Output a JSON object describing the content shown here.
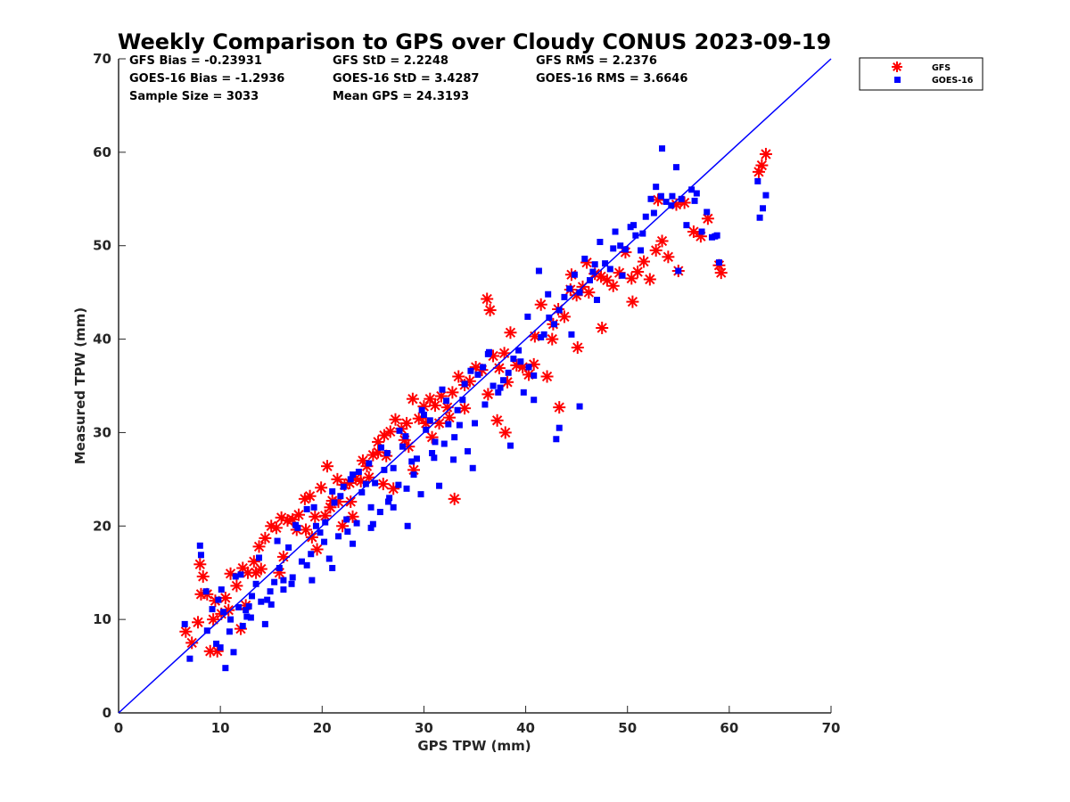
{
  "chart_data": {
    "type": "scatter",
    "title": "Weekly Comparison to GPS over Cloudy CONUS 2023-09-19",
    "xlabel": "GPS TPW (mm)",
    "ylabel": "Measured TPW (mm)",
    "xlim": [
      0,
      70
    ],
    "ylim": [
      0,
      70
    ],
    "xticks": [
      "0",
      "10",
      "20",
      "30",
      "40",
      "50",
      "60",
      "70"
    ],
    "yticks": [
      "0",
      "10",
      "20",
      "30",
      "40",
      "50",
      "60",
      "70"
    ],
    "grid": false,
    "legend": "outside-top-right",
    "stats": [
      [
        "GFS Bias = -0.23931",
        "GFS StD = 2.2248",
        "GFS RMS = 2.2376"
      ],
      [
        "GOES-16 Bias = -1.2936",
        "GOES-16 StD = 3.4287",
        "GOES-16 RMS = 3.6646"
      ],
      [
        "Sample Size = 3033",
        "Mean GPS = 24.3193",
        ""
      ]
    ],
    "reference_line": {
      "x": [
        0,
        70
      ],
      "y": [
        0,
        70
      ],
      "color": "#0000ff"
    },
    "series": [
      {
        "name": "GFS",
        "marker": "asterisk",
        "color": "#ff0000",
        "x": [
          6.6,
          7.2,
          7.8,
          8.0,
          8.3,
          8.7,
          9.0,
          9.7,
          10.1,
          10.5,
          11.0,
          11.6,
          12.0,
          12.7,
          13.3,
          13.8,
          14.4,
          15.0,
          15.5,
          16.0,
          16.6,
          17.1,
          17.7,
          18.3,
          18.8,
          19.3,
          19.9,
          20.5,
          21.0,
          21.6,
          22.2,
          22.7,
          23.3,
          23.8,
          24.4,
          25.0,
          25.5,
          26.1,
          26.7,
          27.2,
          27.8,
          28.3,
          28.9,
          29.5,
          30.0,
          30.6,
          31.1,
          31.7,
          32.3,
          32.8,
          33.4,
          34.0,
          34.5,
          35.1,
          35.7,
          36.2,
          36.8,
          37.4,
          37.9,
          38.5,
          39.1,
          39.7,
          40.3,
          40.9,
          41.5,
          42.1,
          42.7,
          43.2,
          43.8,
          44.4,
          45.0,
          45.6,
          46.2,
          46.8,
          47.4,
          48.0,
          48.6,
          49.2,
          49.8,
          50.4,
          51.0,
          51.6,
          52.2,
          52.8,
          53.4,
          54.0,
          54.8,
          55.6,
          56.5,
          57.2,
          57.9,
          59.0,
          59.2,
          62.9,
          63.2,
          63.6,
          8.1,
          9.3,
          12.5,
          14.0,
          16.2,
          18.4,
          20.3,
          22.8,
          24.6,
          26.3,
          28.1,
          30.2,
          32.5,
          34.0,
          36.3,
          38.2,
          40.8,
          42.6,
          43.3,
          45.1,
          47.5,
          44.5,
          36.5,
          33.0,
          37.2,
          38.0,
          46.0,
          50.5,
          53.0,
          55.0,
          15.8,
          17.5,
          19.0,
          21.5,
          23.0,
          25.5,
          27.0,
          29.0,
          31.5,
          10.8,
          12.2,
          13.5,
          9.5,
          19.5,
          20.8,
          22.0,
          24.0,
          26.0,
          28.5,
          30.8
        ],
        "y": [
          8.7,
          7.5,
          9.7,
          15.9,
          14.6,
          12.7,
          6.6,
          6.6,
          10.6,
          12.3,
          14.9,
          13.6,
          9.0,
          15.0,
          16.2,
          17.8,
          18.7,
          20.0,
          19.8,
          20.9,
          20.6,
          20.7,
          21.2,
          22.9,
          23.2,
          21.0,
          24.1,
          26.4,
          22.7,
          22.6,
          24.4,
          24.6,
          25.1,
          24.8,
          26.4,
          27.6,
          27.9,
          29.7,
          30.1,
          31.4,
          30.4,
          31.0,
          33.6,
          31.5,
          32.8,
          33.6,
          32.9,
          33.9,
          32.7,
          34.3,
          36.0,
          35.1,
          35.5,
          37.0,
          36.7,
          44.3,
          38.2,
          36.9,
          38.5,
          40.7,
          37.2,
          37.0,
          36.2,
          40.3,
          43.7,
          36.0,
          41.6,
          43.2,
          42.4,
          45.3,
          44.7,
          45.6,
          45.0,
          47.0,
          46.7,
          46.3,
          45.7,
          47.1,
          49.3,
          46.5,
          47.2,
          48.3,
          46.4,
          49.5,
          50.5,
          48.8,
          54.4,
          54.6,
          51.5,
          51.0,
          52.9,
          47.9,
          47.1,
          57.9,
          58.6,
          59.8,
          12.7,
          10.0,
          11.5,
          15.4,
          16.7,
          19.6,
          21.1,
          22.6,
          25.2,
          27.5,
          29.2,
          31.0,
          31.6,
          32.6,
          34.1,
          35.4,
          37.3,
          40.0,
          32.7,
          39.1,
          41.2,
          46.9,
          43.1,
          22.9,
          31.3,
          30.0,
          48.2,
          44.0,
          54.9,
          47.3,
          15.0,
          19.6,
          18.8,
          25.0,
          21.0,
          29.0,
          24.0,
          26.0,
          31.0,
          11.0,
          15.5,
          15.0,
          12.0,
          17.5,
          22.0,
          20.0,
          27.0,
          24.5,
          28.5,
          29.5
        ]
      },
      {
        "name": "GOES-16",
        "marker": "square",
        "color": "#0000ff",
        "x": [
          6.5,
          7.0,
          8.0,
          8.1,
          8.6,
          9.2,
          9.6,
          10.0,
          10.5,
          10.9,
          11.3,
          11.8,
          12.2,
          12.6,
          13.1,
          13.5,
          14.0,
          14.4,
          14.9,
          15.3,
          15.8,
          16.2,
          16.7,
          17.1,
          17.6,
          18.0,
          18.5,
          18.9,
          19.4,
          19.8,
          20.3,
          20.7,
          21.2,
          21.6,
          22.1,
          22.5,
          23.0,
          23.4,
          23.9,
          24.3,
          24.8,
          25.2,
          25.7,
          26.1,
          26.6,
          27.0,
          27.5,
          27.9,
          28.4,
          28.8,
          29.3,
          29.7,
          30.2,
          30.6,
          31.1,
          31.5,
          32.0,
          32.4,
          32.9,
          33.3,
          33.8,
          34.3,
          34.8,
          35.3,
          35.8,
          36.3,
          36.8,
          37.3,
          37.8,
          38.3,
          38.8,
          39.3,
          39.8,
          40.3,
          40.8,
          41.3,
          41.8,
          42.3,
          42.8,
          43.3,
          43.8,
          44.3,
          44.8,
          45.3,
          45.8,
          46.3,
          46.8,
          47.3,
          47.8,
          48.3,
          48.8,
          49.3,
          49.8,
          50.3,
          50.8,
          51.3,
          51.8,
          52.3,
          52.8,
          53.3,
          53.8,
          54.3,
          54.8,
          55.3,
          55.8,
          56.3,
          56.8,
          57.3,
          57.8,
          58.3,
          58.8,
          59.0,
          62.8,
          63.0,
          63.3,
          63.6,
          53.4,
          55.0,
          45.3,
          43.3,
          43.0,
          40.8,
          38.5,
          36.0,
          35.0,
          33.0,
          31.0,
          29.0,
          27.0,
          25.0,
          23.0,
          21.0,
          19.0,
          17.0,
          15.0,
          13.0,
          12.5,
          11.0,
          10.3,
          9.8,
          8.7,
          24.8,
          26.5,
          28.3,
          30.8,
          33.5,
          37.5,
          39.5,
          41.5,
          44.5,
          47.0,
          49.5,
          51.5,
          18.5,
          20.2,
          22.4,
          16.2,
          14.6,
          12.8,
          11.5,
          21.8,
          23.6,
          25.8,
          27.6,
          29.8,
          31.8,
          34.6,
          36.4,
          40.2,
          42.2,
          46.6,
          48.6,
          50.6,
          52.6,
          54.4,
          56.6,
          58.6,
          10.1,
          12.0,
          13.8,
          15.6,
          17.4,
          19.2,
          21.0,
          22.8,
          24.6,
          26.4,
          28.2,
          30.0,
          32.2,
          34.0
        ],
        "y": [
          9.5,
          5.8,
          17.9,
          16.9,
          13.0,
          11.1,
          7.4,
          7.0,
          4.8,
          8.7,
          6.5,
          11.3,
          9.3,
          10.3,
          12.5,
          13.8,
          11.9,
          9.5,
          13.0,
          14.0,
          15.5,
          13.2,
          17.7,
          14.5,
          19.8,
          16.2,
          21.8,
          17.0,
          20.0,
          19.3,
          20.4,
          16.5,
          22.5,
          18.9,
          24.2,
          19.4,
          25.5,
          20.3,
          23.6,
          24.5,
          22.0,
          24.6,
          21.5,
          26.0,
          23.0,
          26.2,
          24.4,
          28.5,
          20.0,
          26.9,
          27.2,
          23.4,
          30.3,
          31.3,
          29.0,
          24.3,
          28.8,
          30.9,
          27.1,
          32.4,
          33.5,
          28.0,
          26.2,
          36.2,
          37.0,
          38.4,
          35.0,
          34.3,
          35.6,
          36.4,
          37.9,
          38.8,
          34.3,
          37.0,
          36.1,
          47.3,
          40.5,
          42.3,
          41.6,
          43.1,
          44.5,
          45.4,
          46.9,
          45.0,
          48.6,
          46.3,
          48.0,
          50.4,
          48.1,
          47.5,
          51.5,
          50.0,
          49.6,
          52.0,
          51.1,
          49.5,
          53.1,
          55.0,
          56.3,
          55.3,
          54.7,
          54.3,
          58.4,
          55.0,
          52.2,
          56.0,
          55.6,
          51.5,
          53.6,
          50.9,
          51.1,
          48.2,
          56.9,
          53.0,
          54.0,
          55.4,
          60.4,
          47.3,
          32.8,
          30.5,
          29.3,
          33.5,
          28.6,
          33.0,
          31.0,
          29.5,
          27.3,
          25.5,
          22.0,
          20.2,
          18.1,
          15.5,
          14.2,
          13.8,
          11.6,
          10.2,
          11.0,
          10.0,
          10.8,
          12.1,
          8.8,
          19.8,
          22.6,
          24.0,
          27.8,
          30.8,
          34.8,
          37.6,
          40.2,
          40.5,
          44.2,
          46.8,
          51.3,
          15.8,
          18.3,
          20.7,
          14.2,
          12.1,
          11.4,
          14.6,
          23.2,
          25.8,
          28.4,
          30.2,
          32.4,
          34.6,
          36.6,
          38.6,
          42.4,
          44.8,
          47.2,
          49.7,
          52.2,
          53.5,
          55.3,
          54.8,
          51.0,
          13.2,
          14.8,
          16.6,
          18.4,
          20.1,
          22.0,
          23.7,
          25.0,
          26.7,
          27.8,
          29.6,
          31.9,
          33.4,
          35.2
        ]
      }
    ]
  }
}
